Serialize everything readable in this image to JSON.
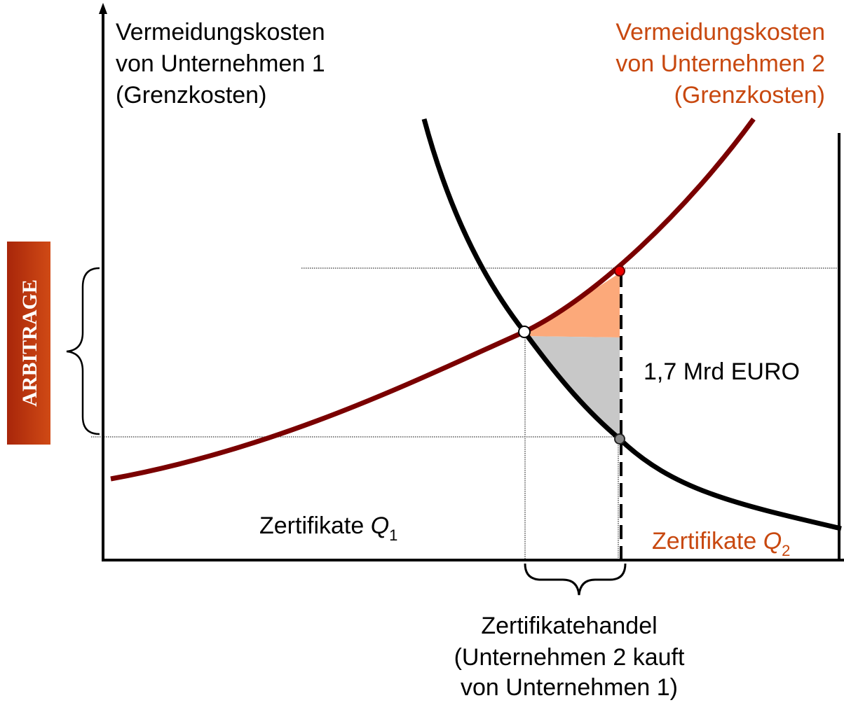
{
  "labels": {
    "company1": [
      "Vermeidungskosten",
      "von Unternehmen 1",
      "(Grenzkosten)"
    ],
    "company2": [
      "Vermeidungskosten",
      "von Unternehmen 2",
      "(Grenzkosten)"
    ],
    "arbitrage": "ARBITRAGE",
    "amount": "1,7 Mrd EURO",
    "q1": {
      "text": "Zertifikate ",
      "symbol": "Q",
      "subscript": "1"
    },
    "q2": {
      "text": "Zertifikate ",
      "symbol": "Q",
      "subscript": "2"
    },
    "trade": [
      "Zertifikatehandel",
      "(Unternehmen 2 kauft",
      "von Unternehmen 1)"
    ]
  }
}
